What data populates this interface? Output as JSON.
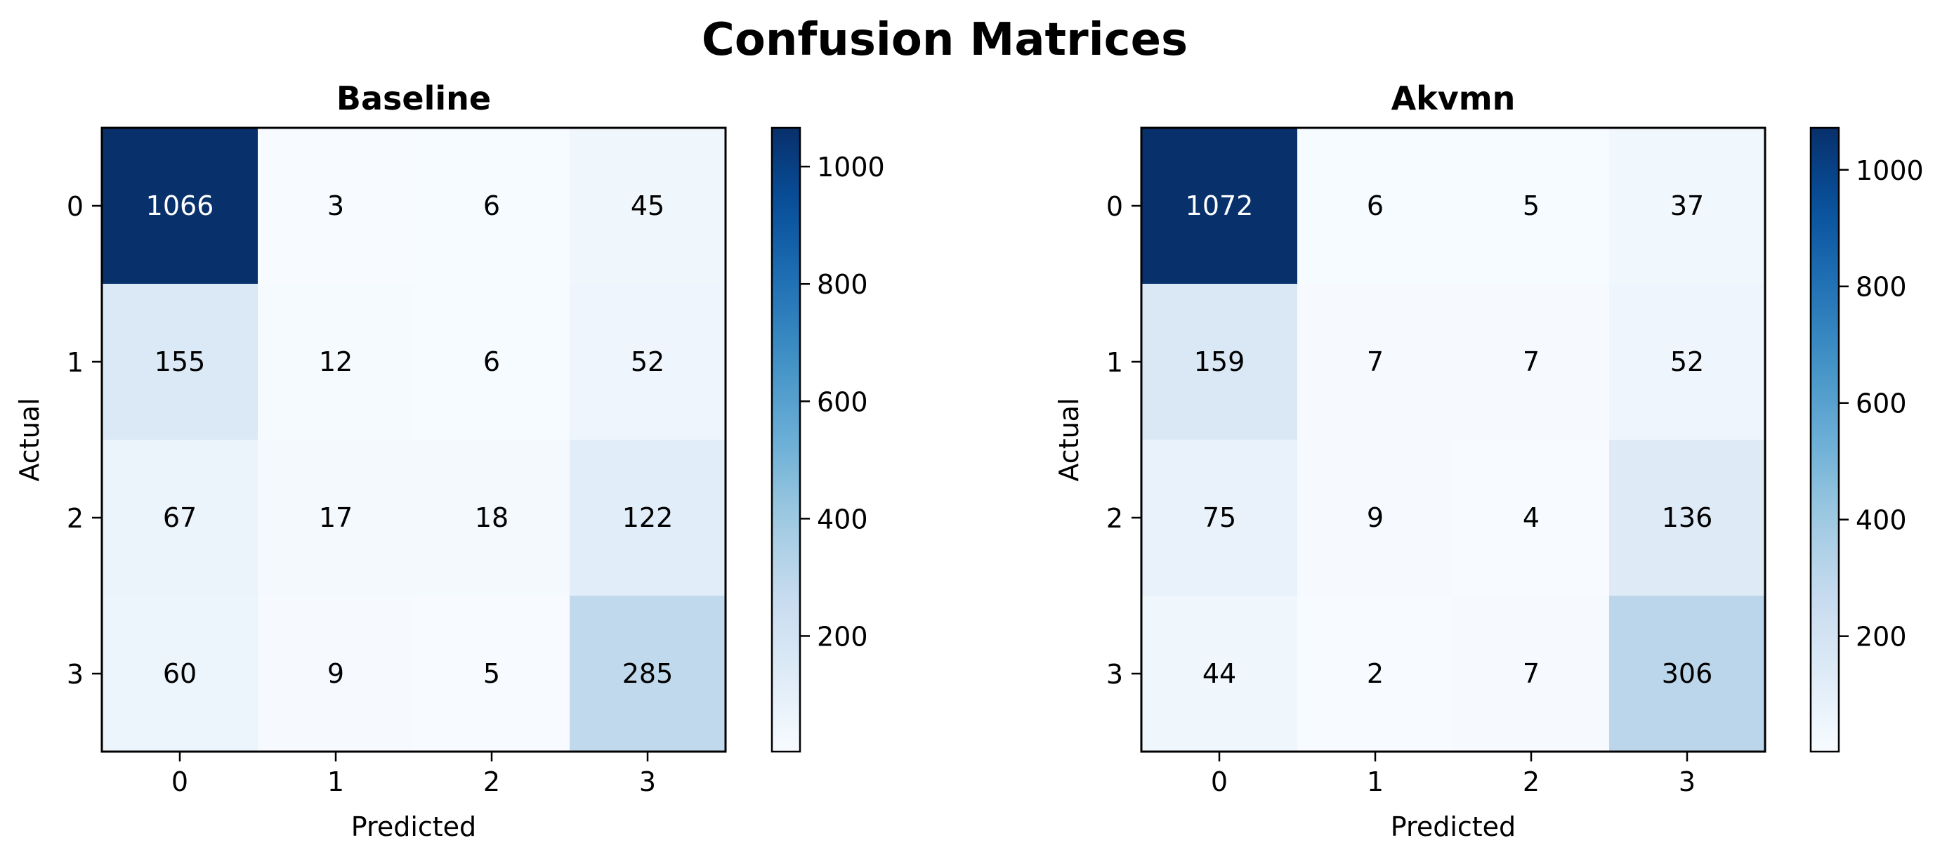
{
  "figure": {
    "title": "Confusion Matrices"
  },
  "chart_data": [
    {
      "type": "heatmap",
      "title": "Baseline",
      "xlabel": "Predicted",
      "ylabel": "Actual",
      "x_categories": [
        "0",
        "1",
        "2",
        "3"
      ],
      "y_categories": [
        "0",
        "1",
        "2",
        "3"
      ],
      "matrix": [
        [
          1066,
          3,
          6,
          45
        ],
        [
          155,
          12,
          6,
          52
        ],
        [
          67,
          17,
          18,
          122
        ],
        [
          60,
          9,
          5,
          285
        ]
      ],
      "colormap": "Blues",
      "colorbar": {
        "ticks": [
          200,
          400,
          600,
          800,
          1000
        ],
        "range": [
          3,
          1066
        ]
      }
    },
    {
      "type": "heatmap",
      "title": "Akvmn",
      "xlabel": "Predicted",
      "ylabel": "Actual",
      "x_categories": [
        "0",
        "1",
        "2",
        "3"
      ],
      "y_categories": [
        "0",
        "1",
        "2",
        "3"
      ],
      "matrix": [
        [
          1072,
          6,
          5,
          37
        ],
        [
          159,
          7,
          7,
          52
        ],
        [
          75,
          9,
          4,
          136
        ],
        [
          44,
          2,
          7,
          306
        ]
      ],
      "colormap": "Blues",
      "colorbar": {
        "ticks": [
          200,
          400,
          600,
          800,
          1000
        ],
        "range": [
          2,
          1072
        ]
      }
    }
  ]
}
